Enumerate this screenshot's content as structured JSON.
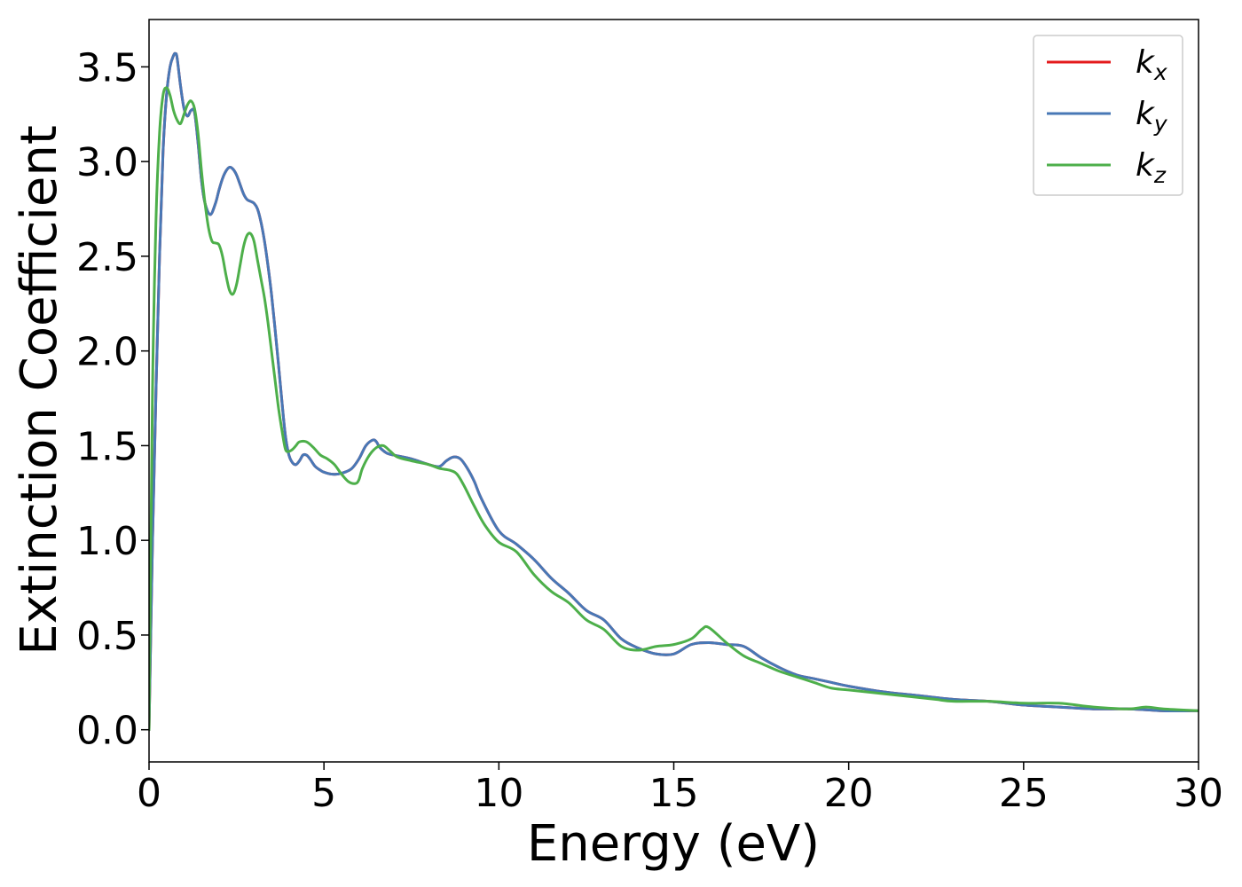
{
  "chart_data": {
    "type": "line",
    "title": "",
    "xlabel": "Energy (eV)",
    "ylabel": "Extinction Coefficient",
    "xlim": [
      0,
      30
    ],
    "ylim": [
      -0.17,
      3.75
    ],
    "grid": false,
    "legend_position": "top-right",
    "xticks": [
      0,
      5,
      10,
      15,
      20,
      25,
      30
    ],
    "xtick_labels": [
      "0",
      "5",
      "10",
      "15",
      "20",
      "25",
      "30"
    ],
    "yticks": [
      0.0,
      0.5,
      1.0,
      1.5,
      2.0,
      2.5,
      3.0,
      3.5
    ],
    "ytick_labels": [
      "0.0",
      "0.5",
      "1.0",
      "1.5",
      "2.0",
      "2.5",
      "3.0",
      "3.5"
    ],
    "series": [
      {
        "name": "k",
        "subscript": "x",
        "color": "#e41a1c",
        "x": [
          0,
          0.1,
          0.2,
          0.3,
          0.4,
          0.5,
          0.6,
          0.7,
          0.75,
          0.8,
          0.9,
          1.0,
          1.1,
          1.2,
          1.3,
          1.4,
          1.5,
          1.6,
          1.75,
          1.9,
          2.0,
          2.1,
          2.2,
          2.3,
          2.4,
          2.5,
          2.6,
          2.7,
          2.8,
          2.9,
          3.0,
          3.1,
          3.2,
          3.3,
          3.4,
          3.5,
          3.6,
          3.7,
          3.8,
          3.9,
          4.0,
          4.1,
          4.2,
          4.3,
          4.4,
          4.5,
          4.6,
          4.75,
          4.9,
          5.0,
          5.2,
          5.4,
          5.6,
          5.8,
          6.0,
          6.2,
          6.4,
          6.5,
          6.6,
          6.8,
          7.0,
          7.5,
          8.0,
          8.3,
          8.5,
          8.7,
          8.9,
          9.1,
          9.3,
          9.5,
          10.0,
          10.5,
          11.0,
          11.5,
          12.0,
          12.5,
          13.0,
          13.5,
          14.0,
          14.5,
          15.0,
          15.5,
          16.0,
          16.5,
          17.0,
          17.5,
          18.0,
          18.5,
          19.0,
          19.5,
          20.0,
          21.0,
          22.0,
          23.0,
          24.0,
          25.0,
          26.0,
          27.0,
          28.0,
          29.0,
          30.0
        ],
        "y": [
          0.0,
          1.0,
          1.8,
          2.5,
          3.05,
          3.35,
          3.5,
          3.56,
          3.57,
          3.55,
          3.4,
          3.28,
          3.24,
          3.27,
          3.26,
          3.1,
          2.9,
          2.78,
          2.72,
          2.78,
          2.85,
          2.91,
          2.95,
          2.97,
          2.96,
          2.93,
          2.88,
          2.83,
          2.8,
          2.79,
          2.78,
          2.75,
          2.68,
          2.58,
          2.45,
          2.3,
          2.12,
          1.93,
          1.73,
          1.55,
          1.45,
          1.41,
          1.4,
          1.42,
          1.45,
          1.45,
          1.43,
          1.39,
          1.37,
          1.36,
          1.35,
          1.35,
          1.36,
          1.38,
          1.43,
          1.5,
          1.53,
          1.52,
          1.49,
          1.46,
          1.45,
          1.43,
          1.4,
          1.39,
          1.42,
          1.44,
          1.43,
          1.38,
          1.31,
          1.22,
          1.05,
          0.98,
          0.9,
          0.8,
          0.72,
          0.63,
          0.58,
          0.48,
          0.43,
          0.4,
          0.4,
          0.45,
          0.46,
          0.45,
          0.44,
          0.38,
          0.33,
          0.29,
          0.27,
          0.25,
          0.23,
          0.2,
          0.18,
          0.16,
          0.15,
          0.13,
          0.12,
          0.11,
          0.11,
          0.1,
          0.1
        ]
      },
      {
        "name": "k",
        "subscript": "y",
        "color": "#4878b6",
        "x": [
          0,
          0.1,
          0.2,
          0.3,
          0.4,
          0.5,
          0.6,
          0.7,
          0.75,
          0.8,
          0.9,
          1.0,
          1.1,
          1.2,
          1.3,
          1.4,
          1.5,
          1.6,
          1.75,
          1.9,
          2.0,
          2.1,
          2.2,
          2.3,
          2.4,
          2.5,
          2.6,
          2.7,
          2.8,
          2.9,
          3.0,
          3.1,
          3.2,
          3.3,
          3.4,
          3.5,
          3.6,
          3.7,
          3.8,
          3.9,
          4.0,
          4.1,
          4.2,
          4.3,
          4.4,
          4.5,
          4.6,
          4.75,
          4.9,
          5.0,
          5.2,
          5.4,
          5.6,
          5.8,
          6.0,
          6.2,
          6.4,
          6.5,
          6.6,
          6.8,
          7.0,
          7.5,
          8.0,
          8.3,
          8.5,
          8.7,
          8.9,
          9.1,
          9.3,
          9.5,
          10.0,
          10.5,
          11.0,
          11.5,
          12.0,
          12.5,
          13.0,
          13.5,
          14.0,
          14.5,
          15.0,
          15.5,
          16.0,
          16.5,
          17.0,
          17.5,
          18.0,
          18.5,
          19.0,
          19.5,
          20.0,
          21.0,
          22.0,
          23.0,
          24.0,
          25.0,
          26.0,
          27.0,
          28.0,
          29.0,
          30.0
        ],
        "y": [
          0.0,
          1.0,
          1.8,
          2.5,
          3.05,
          3.35,
          3.5,
          3.56,
          3.57,
          3.55,
          3.4,
          3.28,
          3.24,
          3.27,
          3.26,
          3.1,
          2.9,
          2.78,
          2.72,
          2.78,
          2.85,
          2.91,
          2.95,
          2.97,
          2.96,
          2.93,
          2.88,
          2.83,
          2.8,
          2.79,
          2.78,
          2.75,
          2.68,
          2.58,
          2.45,
          2.3,
          2.12,
          1.93,
          1.73,
          1.55,
          1.45,
          1.41,
          1.4,
          1.42,
          1.45,
          1.45,
          1.43,
          1.39,
          1.37,
          1.36,
          1.35,
          1.35,
          1.36,
          1.38,
          1.43,
          1.5,
          1.53,
          1.52,
          1.49,
          1.46,
          1.45,
          1.43,
          1.4,
          1.39,
          1.42,
          1.44,
          1.43,
          1.38,
          1.31,
          1.22,
          1.05,
          0.98,
          0.9,
          0.8,
          0.72,
          0.63,
          0.58,
          0.48,
          0.43,
          0.4,
          0.4,
          0.45,
          0.46,
          0.45,
          0.44,
          0.38,
          0.33,
          0.29,
          0.27,
          0.25,
          0.23,
          0.2,
          0.18,
          0.16,
          0.15,
          0.13,
          0.12,
          0.11,
          0.11,
          0.1,
          0.1
        ]
      },
      {
        "name": "k",
        "subscript": "z",
        "color": "#4daf4a",
        "x": [
          0,
          0.1,
          0.2,
          0.3,
          0.4,
          0.5,
          0.6,
          0.7,
          0.8,
          0.9,
          1.0,
          1.1,
          1.2,
          1.3,
          1.4,
          1.5,
          1.6,
          1.7,
          1.8,
          1.9,
          2.0,
          2.1,
          2.2,
          2.3,
          2.4,
          2.5,
          2.6,
          2.7,
          2.8,
          2.9,
          3.0,
          3.1,
          3.2,
          3.3,
          3.4,
          3.5,
          3.6,
          3.7,
          3.8,
          3.9,
          4.0,
          4.1,
          4.2,
          4.3,
          4.5,
          4.7,
          4.9,
          5.1,
          5.3,
          5.5,
          5.7,
          5.9,
          6.0,
          6.1,
          6.3,
          6.5,
          6.7,
          6.9,
          7.1,
          7.5,
          8.0,
          8.3,
          8.6,
          8.8,
          9.0,
          9.3,
          9.6,
          10.0,
          10.5,
          11.0,
          11.5,
          12.0,
          12.5,
          13.0,
          13.5,
          14.0,
          14.5,
          15.0,
          15.5,
          15.8,
          16.0,
          16.5,
          17.0,
          17.5,
          18.0,
          18.5,
          19.0,
          19.5,
          20.0,
          21.0,
          22.0,
          22.5,
          23.0,
          24.0,
          25.0,
          26.0,
          27.0,
          28.0,
          28.5,
          29.0,
          30.0
        ],
        "y": [
          0.0,
          1.8,
          2.7,
          3.15,
          3.35,
          3.39,
          3.35,
          3.27,
          3.22,
          3.2,
          3.25,
          3.3,
          3.32,
          3.28,
          3.15,
          2.95,
          2.78,
          2.65,
          2.58,
          2.57,
          2.56,
          2.5,
          2.4,
          2.32,
          2.3,
          2.35,
          2.45,
          2.55,
          2.61,
          2.62,
          2.58,
          2.48,
          2.38,
          2.28,
          2.15,
          2.0,
          1.85,
          1.7,
          1.58,
          1.48,
          1.47,
          1.48,
          1.5,
          1.52,
          1.52,
          1.49,
          1.45,
          1.43,
          1.4,
          1.35,
          1.31,
          1.3,
          1.32,
          1.38,
          1.45,
          1.49,
          1.5,
          1.47,
          1.44,
          1.42,
          1.4,
          1.38,
          1.37,
          1.35,
          1.29,
          1.18,
          1.08,
          0.99,
          0.94,
          0.82,
          0.73,
          0.67,
          0.58,
          0.53,
          0.44,
          0.42,
          0.44,
          0.45,
          0.48,
          0.53,
          0.54,
          0.46,
          0.39,
          0.35,
          0.31,
          0.28,
          0.25,
          0.22,
          0.21,
          0.19,
          0.17,
          0.16,
          0.15,
          0.15,
          0.14,
          0.14,
          0.12,
          0.11,
          0.12,
          0.11,
          0.1
        ]
      }
    ]
  }
}
